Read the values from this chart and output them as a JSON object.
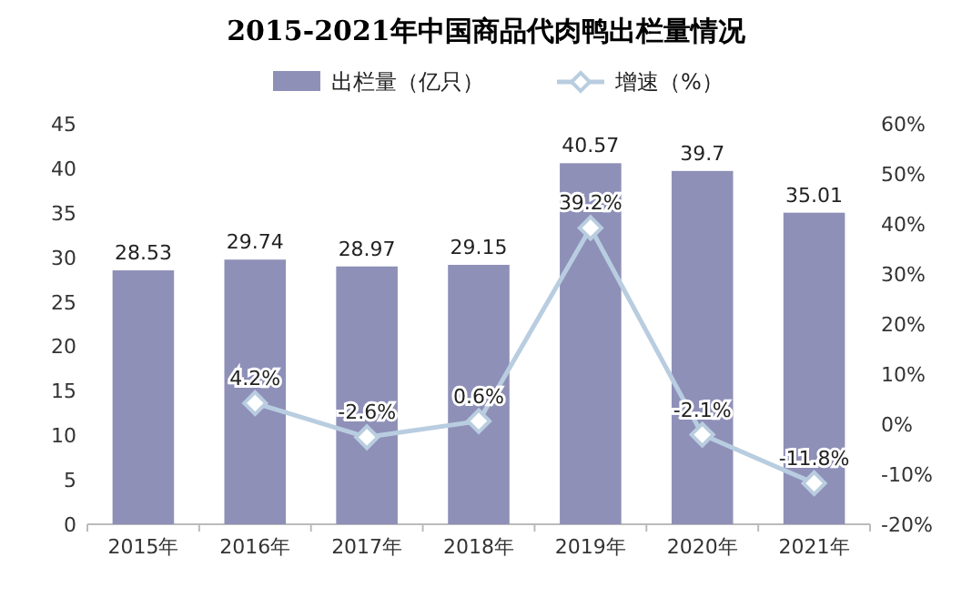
{
  "chart_data": {
    "type": "bar",
    "title": "2015-2021年中国商品代肉鸭出栏量情况",
    "categories": [
      "2015年",
      "2016年",
      "2017年",
      "2018年",
      "2019年",
      "2020年",
      "2021年"
    ],
    "series": [
      {
        "name": "出栏量（亿只）",
        "color": "#8e90b8",
        "values": [
          28.53,
          29.74,
          28.97,
          29.15,
          40.57,
          39.7,
          35.01
        ],
        "value_labels": [
          "28.53",
          "29.74",
          "28.97",
          "29.15",
          "40.57",
          "39.7",
          "35.01"
        ]
      },
      {
        "name": "增速（%）",
        "type": "line",
        "axis": "y2",
        "color": "#b9cde0",
        "marker": "diamond",
        "values": [
          null,
          4.2,
          -2.6,
          0.6,
          39.2,
          -2.1,
          -11.8
        ],
        "value_labels": [
          null,
          "4.2%",
          "-2.6%",
          "0.6%",
          "39.2%",
          "-2.1%",
          "-11.8%"
        ]
      }
    ],
    "ylim": [
      0,
      45
    ],
    "yticks": [
      0,
      5,
      10,
      15,
      20,
      25,
      30,
      35,
      40,
      45
    ],
    "y2lim": [
      -20,
      60
    ],
    "y2ticks": [
      {
        "value": -20,
        "label": "-20%"
      },
      {
        "value": -10,
        "label": "-10%"
      },
      {
        "value": 0,
        "label": "0%"
      },
      {
        "value": 10,
        "label": "10%"
      },
      {
        "value": 20,
        "label": "20%"
      },
      {
        "value": 30,
        "label": "30%"
      },
      {
        "value": 40,
        "label": "40%"
      },
      {
        "value": 50,
        "label": "50%"
      },
      {
        "value": 60,
        "label": "60%"
      }
    ],
    "legend": "top"
  }
}
